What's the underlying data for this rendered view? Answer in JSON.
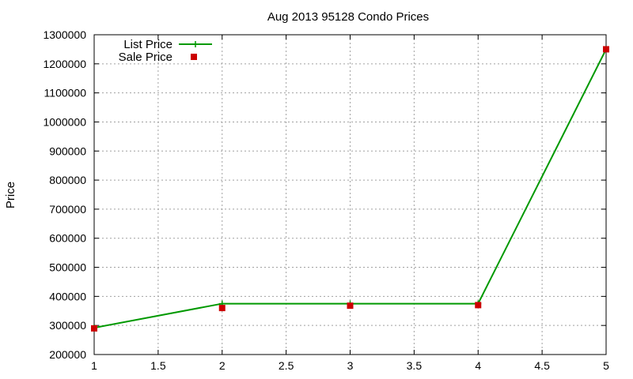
{
  "chart_data": {
    "type": "line",
    "title": "Aug 2013 95128 Condo Prices",
    "xlabel": "",
    "ylabel": "Price",
    "xlim": [
      1,
      5
    ],
    "ylim": [
      200000,
      1300000
    ],
    "x_ticks": [
      "1",
      "1.5",
      "2",
      "2.5",
      "3",
      "3.5",
      "4",
      "4.5",
      "5"
    ],
    "x_tick_values": [
      1,
      1.5,
      2,
      2.5,
      3,
      3.5,
      4,
      4.5,
      5
    ],
    "y_ticks": [
      "200000",
      "300000",
      "400000",
      "500000",
      "600000",
      "700000",
      "800000",
      "900000",
      "1000000",
      "1100000",
      "1200000",
      "1300000"
    ],
    "y_tick_values": [
      200000,
      300000,
      400000,
      500000,
      600000,
      700000,
      800000,
      900000,
      1000000,
      1100000,
      1200000,
      1300000
    ],
    "grid": true,
    "legend_position": "top-left",
    "series": [
      {
        "name": "List Price",
        "style": "line",
        "color": "#009900",
        "points": [
          [
            1,
            292000
          ],
          [
            2,
            375000
          ],
          [
            3,
            375000
          ],
          [
            4,
            375000
          ],
          [
            5,
            1250000
          ]
        ]
      },
      {
        "name": "Sale Price",
        "style": "markers",
        "color": "#cc0000",
        "points": [
          [
            1,
            290000
          ],
          [
            2,
            360000
          ],
          [
            3,
            368000
          ],
          [
            4,
            370000
          ],
          [
            5,
            1250000
          ]
        ]
      }
    ]
  }
}
